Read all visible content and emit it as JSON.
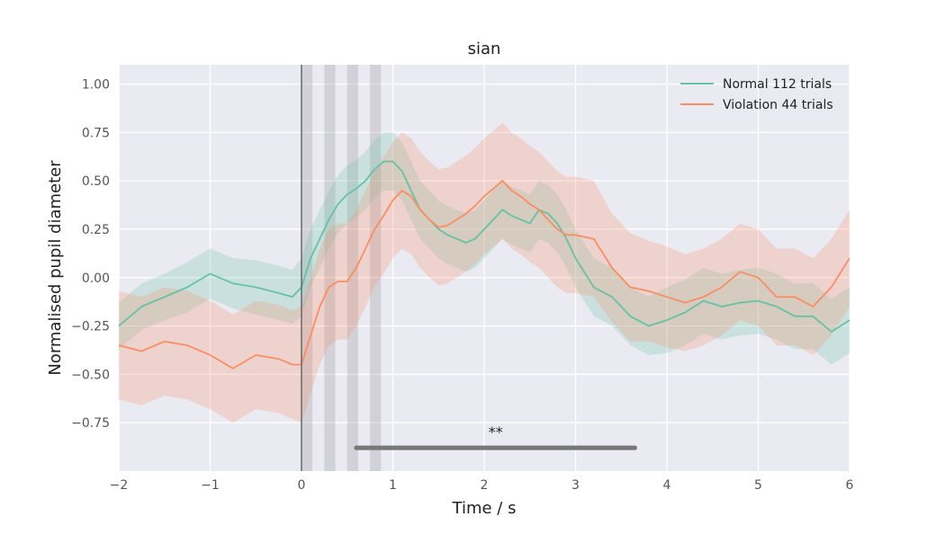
{
  "chart_data": {
    "type": "line",
    "title": "sian",
    "xlabel": "Time / s",
    "ylabel": "Normalised pupil diameter",
    "xlim": [
      -2,
      6
    ],
    "ylim": [
      -1.0,
      1.1
    ],
    "x_ticks": [
      -2,
      -1,
      0,
      1,
      2,
      3,
      4,
      5,
      6
    ],
    "y_ticks": [
      -0.75,
      -0.5,
      -0.25,
      0.0,
      0.25,
      0.5,
      0.75,
      1.0
    ],
    "x_tick_labels": [
      "−2",
      "−1",
      "0",
      "1",
      "2",
      "3",
      "4",
      "5",
      "6"
    ],
    "y_tick_labels": [
      "−0.75",
      "−0.50",
      "−0.25",
      "0.00",
      "0.25",
      "0.50",
      "0.75",
      "1.00"
    ],
    "grid": true,
    "legend_position": "top-right",
    "background_color": "#eaeaf2",
    "stimulus_onset": 0,
    "shaded_windows": [
      [
        0,
        0.12
      ],
      [
        0.25,
        0.37
      ],
      [
        0.5,
        0.62
      ],
      [
        0.75,
        0.87
      ]
    ],
    "significance": {
      "x_start": 0.6,
      "x_end": 3.65,
      "y": -0.88,
      "label": "**"
    },
    "series": [
      {
        "name": "Normal 112 trials",
        "color": "#66c2a5",
        "x": [
          -2.0,
          -1.75,
          -1.5,
          -1.25,
          -1.0,
          -0.75,
          -0.5,
          -0.25,
          -0.1,
          0.0,
          0.1,
          0.2,
          0.3,
          0.4,
          0.5,
          0.6,
          0.7,
          0.8,
          0.9,
          1.0,
          1.1,
          1.2,
          1.3,
          1.4,
          1.5,
          1.6,
          1.7,
          1.8,
          1.9,
          2.0,
          2.1,
          2.2,
          2.3,
          2.4,
          2.5,
          2.6,
          2.7,
          2.8,
          2.9,
          3.0,
          3.2,
          3.4,
          3.6,
          3.8,
          4.0,
          4.2,
          4.4,
          4.6,
          4.8,
          5.0,
          5.2,
          5.4,
          5.6,
          5.8,
          6.0
        ],
        "y": [
          -0.25,
          -0.15,
          -0.1,
          -0.05,
          0.02,
          -0.03,
          -0.05,
          -0.08,
          -0.1,
          -0.05,
          0.1,
          0.2,
          0.3,
          0.38,
          0.43,
          0.46,
          0.5,
          0.56,
          0.6,
          0.6,
          0.55,
          0.45,
          0.35,
          0.3,
          0.25,
          0.22,
          0.2,
          0.18,
          0.2,
          0.25,
          0.3,
          0.35,
          0.32,
          0.3,
          0.28,
          0.35,
          0.33,
          0.28,
          0.2,
          0.1,
          -0.05,
          -0.1,
          -0.2,
          -0.25,
          -0.22,
          -0.18,
          -0.12,
          -0.15,
          -0.13,
          -0.12,
          -0.15,
          -0.2,
          -0.2,
          -0.28,
          -0.22
        ],
        "ci_half_width": [
          0.12,
          0.12,
          0.12,
          0.13,
          0.13,
          0.13,
          0.14,
          0.14,
          0.14,
          0.15,
          0.15,
          0.15,
          0.15,
          0.15,
          0.15,
          0.15,
          0.15,
          0.15,
          0.15,
          0.15,
          0.15,
          0.15,
          0.15,
          0.15,
          0.15,
          0.15,
          0.15,
          0.15,
          0.15,
          0.15,
          0.15,
          0.15,
          0.15,
          0.15,
          0.15,
          0.15,
          0.15,
          0.15,
          0.15,
          0.15,
          0.15,
          0.15,
          0.15,
          0.15,
          0.17,
          0.17,
          0.17,
          0.17,
          0.17,
          0.17,
          0.17,
          0.17,
          0.17,
          0.17,
          0.17
        ]
      },
      {
        "name": "Violation 44 trials",
        "color": "#fc8d62",
        "x": [
          -2.0,
          -1.75,
          -1.5,
          -1.25,
          -1.0,
          -0.75,
          -0.5,
          -0.25,
          -0.1,
          0.0,
          0.1,
          0.2,
          0.3,
          0.4,
          0.5,
          0.6,
          0.7,
          0.8,
          0.9,
          1.0,
          1.1,
          1.2,
          1.3,
          1.4,
          1.5,
          1.6,
          1.7,
          1.8,
          1.9,
          2.0,
          2.1,
          2.2,
          2.3,
          2.4,
          2.5,
          2.6,
          2.7,
          2.8,
          2.9,
          3.0,
          3.2,
          3.4,
          3.6,
          3.8,
          4.0,
          4.2,
          4.4,
          4.6,
          4.8,
          5.0,
          5.2,
          5.4,
          5.6,
          5.8,
          6.0
        ],
        "y": [
          -0.35,
          -0.38,
          -0.33,
          -0.35,
          -0.4,
          -0.47,
          -0.4,
          -0.42,
          -0.45,
          -0.45,
          -0.3,
          -0.15,
          -0.05,
          -0.02,
          -0.02,
          0.05,
          0.15,
          0.25,
          0.32,
          0.4,
          0.45,
          0.42,
          0.35,
          0.3,
          0.26,
          0.27,
          0.3,
          0.33,
          0.37,
          0.42,
          0.46,
          0.5,
          0.45,
          0.42,
          0.38,
          0.35,
          0.3,
          0.25,
          0.22,
          0.22,
          0.2,
          0.05,
          -0.05,
          -0.07,
          -0.1,
          -0.13,
          -0.1,
          -0.05,
          0.03,
          0.0,
          -0.1,
          -0.1,
          -0.15,
          -0.05,
          0.1
        ],
        "ci_half_width": [
          0.28,
          0.28,
          0.28,
          0.28,
          0.28,
          0.28,
          0.28,
          0.28,
          0.28,
          0.3,
          0.3,
          0.3,
          0.3,
          0.3,
          0.3,
          0.3,
          0.3,
          0.3,
          0.3,
          0.3,
          0.3,
          0.3,
          0.3,
          0.3,
          0.3,
          0.3,
          0.3,
          0.3,
          0.3,
          0.3,
          0.3,
          0.3,
          0.3,
          0.3,
          0.3,
          0.3,
          0.3,
          0.3,
          0.3,
          0.3,
          0.3,
          0.28,
          0.28,
          0.26,
          0.26,
          0.25,
          0.25,
          0.25,
          0.25,
          0.25,
          0.25,
          0.25,
          0.25,
          0.25,
          0.25
        ]
      }
    ]
  }
}
